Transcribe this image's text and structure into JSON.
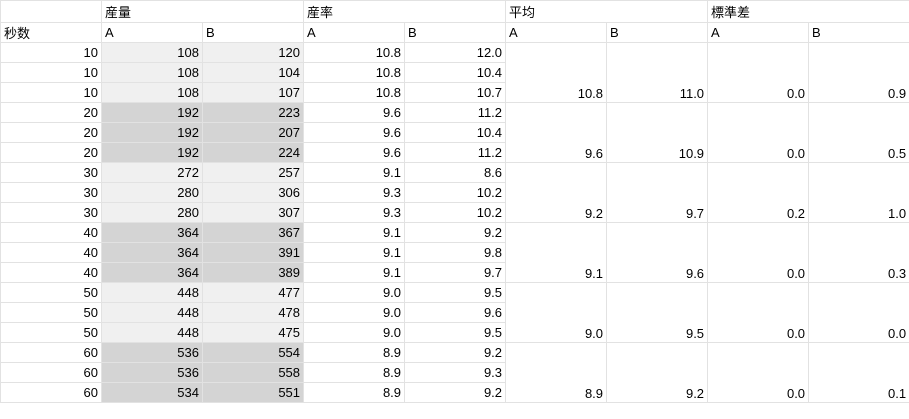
{
  "header": {
    "groups": [
      "産量",
      "産率",
      "平均",
      "標準差"
    ],
    "row_label": "秒数",
    "sub_headers": [
      "A",
      "B",
      "A",
      "B",
      "A",
      "B",
      "A",
      "B"
    ]
  },
  "rows": [
    {
      "seconds": "10",
      "yield_a": "108",
      "yield_b": "120",
      "rate_a": "10.8",
      "rate_b": "12.0"
    },
    {
      "seconds": "10",
      "yield_a": "108",
      "yield_b": "104",
      "rate_a": "10.8",
      "rate_b": "10.4"
    },
    {
      "seconds": "10",
      "yield_a": "108",
      "yield_b": "107",
      "rate_a": "10.8",
      "rate_b": "10.7"
    },
    {
      "seconds": "20",
      "yield_a": "192",
      "yield_b": "223",
      "rate_a": "9.6",
      "rate_b": "11.2"
    },
    {
      "seconds": "20",
      "yield_a": "192",
      "yield_b": "207",
      "rate_a": "9.6",
      "rate_b": "10.4"
    },
    {
      "seconds": "20",
      "yield_a": "192",
      "yield_b": "224",
      "rate_a": "9.6",
      "rate_b": "11.2"
    },
    {
      "seconds": "30",
      "yield_a": "272",
      "yield_b": "257",
      "rate_a": "9.1",
      "rate_b": "8.6"
    },
    {
      "seconds": "30",
      "yield_a": "280",
      "yield_b": "306",
      "rate_a": "9.3",
      "rate_b": "10.2"
    },
    {
      "seconds": "30",
      "yield_a": "280",
      "yield_b": "307",
      "rate_a": "9.3",
      "rate_b": "10.2"
    },
    {
      "seconds": "40",
      "yield_a": "364",
      "yield_b": "367",
      "rate_a": "9.1",
      "rate_b": "9.2"
    },
    {
      "seconds": "40",
      "yield_a": "364",
      "yield_b": "391",
      "rate_a": "9.1",
      "rate_b": "9.8"
    },
    {
      "seconds": "40",
      "yield_a": "364",
      "yield_b": "389",
      "rate_a": "9.1",
      "rate_b": "9.7"
    },
    {
      "seconds": "50",
      "yield_a": "448",
      "yield_b": "477",
      "rate_a": "9.0",
      "rate_b": "9.5"
    },
    {
      "seconds": "50",
      "yield_a": "448",
      "yield_b": "478",
      "rate_a": "9.0",
      "rate_b": "9.6"
    },
    {
      "seconds": "50",
      "yield_a": "448",
      "yield_b": "475",
      "rate_a": "9.0",
      "rate_b": "9.5"
    },
    {
      "seconds": "60",
      "yield_a": "536",
      "yield_b": "554",
      "rate_a": "8.9",
      "rate_b": "9.2"
    },
    {
      "seconds": "60",
      "yield_a": "536",
      "yield_b": "558",
      "rate_a": "8.9",
      "rate_b": "9.3"
    },
    {
      "seconds": "60",
      "yield_a": "534",
      "yield_b": "551",
      "rate_a": "8.9",
      "rate_b": "9.2"
    }
  ],
  "groups": [
    {
      "avg_a": "10.8",
      "avg_b": "11.0",
      "sd_a": "0.0",
      "sd_b": "0.9"
    },
    {
      "avg_a": "9.6",
      "avg_b": "10.9",
      "sd_a": "0.0",
      "sd_b": "0.5"
    },
    {
      "avg_a": "9.2",
      "avg_b": "9.7",
      "sd_a": "0.2",
      "sd_b": "1.0"
    },
    {
      "avg_a": "9.1",
      "avg_b": "9.6",
      "sd_a": "0.0",
      "sd_b": "0.3"
    },
    {
      "avg_a": "9.0",
      "avg_b": "9.5",
      "sd_a": "0.0",
      "sd_b": "0.0"
    },
    {
      "avg_a": "8.9",
      "avg_b": "9.2",
      "sd_a": "0.0",
      "sd_b": "0.1"
    }
  ],
  "colors": {
    "band_light": "#f0f0f0",
    "band_dark": "#d4d4d4",
    "grid": "#e2e2e2"
  }
}
